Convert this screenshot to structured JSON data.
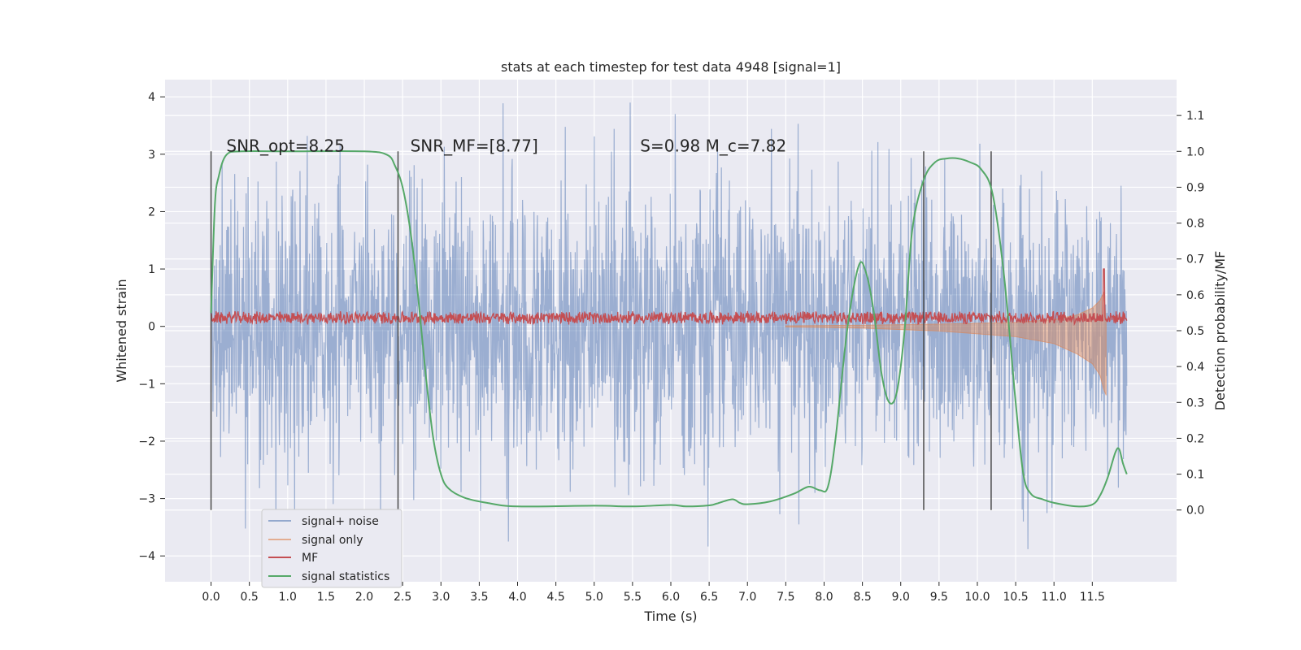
{
  "chart_data": {
    "type": "line",
    "title": "stats at each timestep for test data 4948 [signal=1]",
    "xlabel": "Time (s)",
    "ylabel": "Whitened strain",
    "ylabel_right": "Detection probability/MF",
    "xlim": [
      -0.6,
      12.6
    ],
    "ylim": [
      -4.45,
      4.3
    ],
    "ylim_right": [
      -0.2,
      1.2
    ],
    "xticks": [
      "0.0",
      "0.5",
      "1.0",
      "1.5",
      "2.0",
      "2.5",
      "3.0",
      "3.5",
      "4.0",
      "4.5",
      "5.0",
      "5.5",
      "6.0",
      "6.5",
      "7.0",
      "7.5",
      "8.0",
      "8.5",
      "9.0",
      "9.5",
      "10.0",
      "10.5",
      "11.0",
      "11.5"
    ],
    "yticks": [
      "4",
      "3",
      "2",
      "1",
      "0",
      "−1",
      "−2",
      "−3",
      "−4"
    ],
    "yticks_right": [
      "1.1",
      "1.0",
      "0.9",
      "0.8",
      "0.7",
      "0.6",
      "0.5",
      "0.4",
      "0.3",
      "0.2",
      "0.1",
      "0.0"
    ],
    "grid": true,
    "legend_position": "lower-left",
    "annotations": [
      {
        "text": "SNR_opt=8.25",
        "x": 0.2,
        "y_right": 1.0
      },
      {
        "text": "SNR_MF=[8.77]",
        "x": 2.6,
        "y_right": 1.0
      },
      {
        "text": "S=0.98   M_c=7.82",
        "x": 5.6,
        "y_right": 1.0
      }
    ],
    "vertical_lines_x": [
      0.0,
      2.44,
      9.3,
      10.18
    ],
    "series": [
      {
        "name": "signal+ noise",
        "color": "#4c72b0",
        "x_range": [
          0.0,
          11.95
        ],
        "noise_amplitude": 1.15,
        "max_peak": 3.9,
        "min_trough": -4.1
      },
      {
        "name": "signal only",
        "color": "#dd8452",
        "x": [
          7.5,
          8.5,
          9.5,
          10.5,
          11.0,
          11.3,
          11.5,
          11.6,
          11.65,
          11.68
        ],
        "upper": [
          0.01,
          0.02,
          0.04,
          0.07,
          0.12,
          0.2,
          0.32,
          0.45,
          0.6,
          0.1
        ],
        "lower": [
          -0.01,
          -0.03,
          -0.08,
          -0.18,
          -0.3,
          -0.48,
          -0.65,
          -0.85,
          -1.1,
          -1.2
        ]
      },
      {
        "name": "MF",
        "color": "#c44e52",
        "x_range": [
          0.0,
          11.95
        ],
        "baseline": 0.15,
        "spread": 0.12,
        "peak": {
          "x": 11.65,
          "y": 1.0
        }
      },
      {
        "name": "signal statistics",
        "color": "#55a868",
        "axis": "right",
        "x": [
          0.0,
          0.05,
          0.1,
          0.2,
          0.4,
          1.0,
          2.0,
          2.3,
          2.4,
          2.5,
          2.6,
          2.7,
          2.8,
          2.9,
          3.0,
          3.1,
          3.3,
          3.6,
          4.0,
          5.0,
          5.5,
          6.0,
          6.2,
          6.5,
          6.6,
          6.8,
          6.9,
          7.0,
          7.3,
          7.6,
          7.8,
          7.95,
          8.05,
          8.15,
          8.3,
          8.45,
          8.55,
          8.65,
          8.75,
          8.85,
          8.95,
          9.05,
          9.15,
          9.3,
          9.45,
          9.6,
          9.75,
          9.9,
          10.05,
          10.2,
          10.35,
          10.5,
          10.6,
          10.7,
          10.85,
          11.0,
          11.3,
          11.5,
          11.6,
          11.7,
          11.8,
          11.85,
          11.9,
          11.95
        ],
        "y": [
          0.55,
          0.85,
          0.93,
          0.99,
          1.0,
          1.0,
          1.0,
          0.99,
          0.96,
          0.9,
          0.78,
          0.6,
          0.38,
          0.2,
          0.1,
          0.06,
          0.035,
          0.02,
          0.01,
          0.012,
          0.01,
          0.014,
          0.01,
          0.013,
          0.018,
          0.03,
          0.02,
          0.016,
          0.024,
          0.045,
          0.065,
          0.055,
          0.065,
          0.2,
          0.5,
          0.68,
          0.66,
          0.55,
          0.38,
          0.3,
          0.33,
          0.5,
          0.78,
          0.92,
          0.97,
          0.98,
          0.98,
          0.97,
          0.95,
          0.88,
          0.65,
          0.3,
          0.1,
          0.045,
          0.03,
          0.02,
          0.01,
          0.015,
          0.04,
          0.09,
          0.16,
          0.17,
          0.13,
          0.1
        ]
      }
    ]
  }
}
